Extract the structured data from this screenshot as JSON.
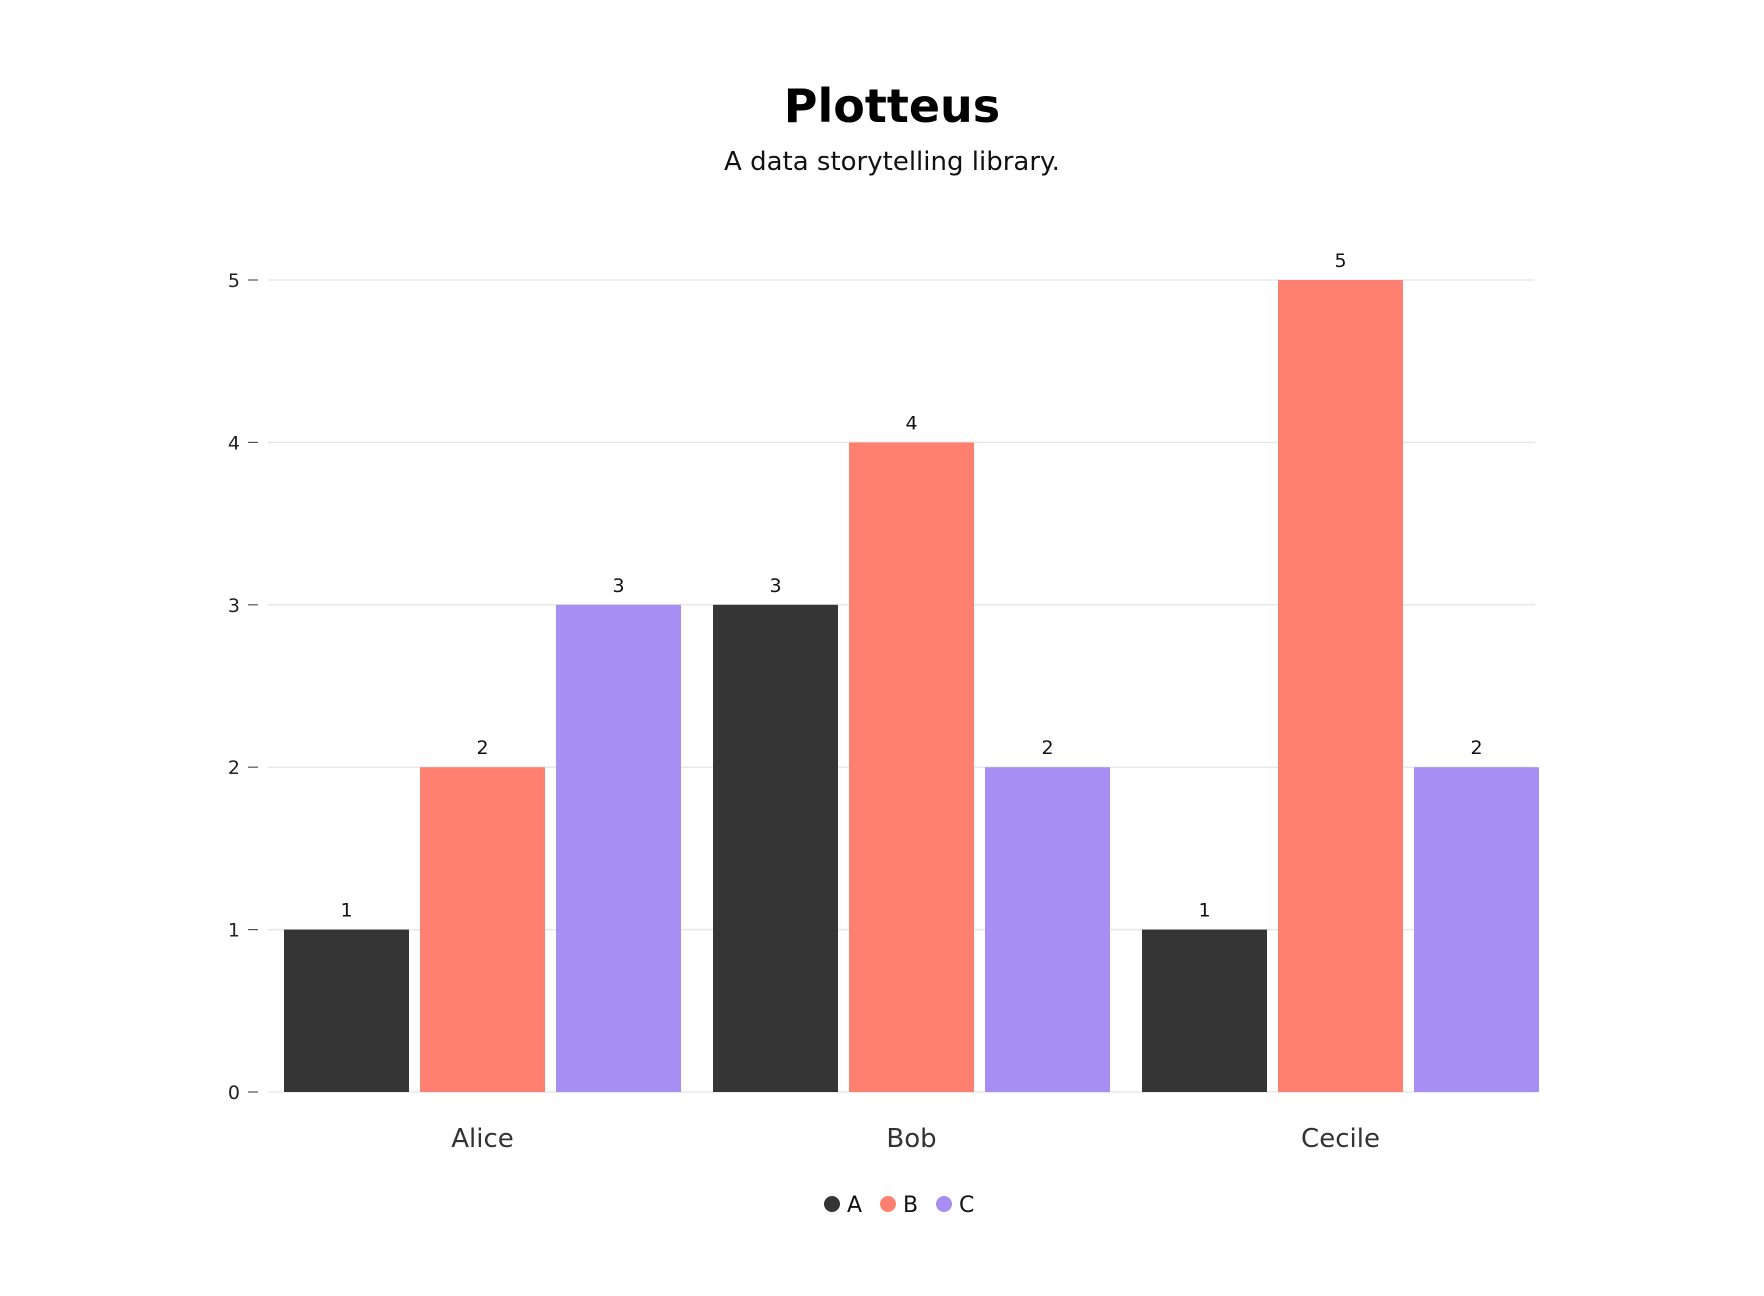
{
  "chart_data": {
    "type": "bar",
    "title": "Plotteus",
    "subtitle": "A data storytelling library.",
    "categories": [
      "Alice",
      "Bob",
      "Cecile"
    ],
    "series": [
      {
        "name": "A",
        "values": [
          1,
          3,
          1
        ],
        "color": "#353535"
      },
      {
        "name": "B",
        "values": [
          2,
          4,
          5
        ],
        "color": "#ff8071"
      },
      {
        "name": "C",
        "values": [
          3,
          2,
          2
        ],
        "color": "#a68ef2"
      }
    ],
    "ylim": [
      0,
      5
    ],
    "yticks": [
      "0",
      "1",
      "2",
      "3",
      "4",
      "5"
    ],
    "grid": true,
    "legend_position": "bottom-center"
  }
}
